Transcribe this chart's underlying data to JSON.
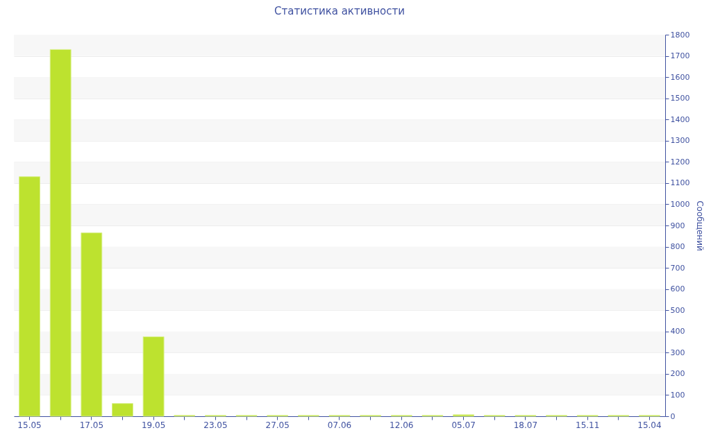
{
  "chart_data": {
    "type": "bar",
    "title": "Статистика активности",
    "ylabel": "Сообщений",
    "categories": [
      "15.05",
      null,
      "17.05",
      null,
      "19.05",
      null,
      "23.05",
      null,
      "27.05",
      null,
      "07.06",
      null,
      "12.06",
      null,
      "05.07",
      null,
      "18.07",
      null,
      "15.11",
      null,
      "15.04"
    ],
    "values": [
      1130,
      1730,
      865,
      60,
      375,
      4,
      4,
      4,
      4,
      4,
      4,
      4,
      4,
      4,
      7,
      4,
      4,
      4,
      4,
      4,
      4
    ],
    "color": "#bde22f",
    "ylim": [
      0,
      1800
    ],
    "yticks": [
      0,
      100,
      200,
      300,
      400,
      500,
      600,
      700,
      800,
      900,
      1000,
      1100,
      1200,
      1300,
      1400,
      1500,
      1600,
      1700,
      1800
    ],
    "grid": true
  }
}
